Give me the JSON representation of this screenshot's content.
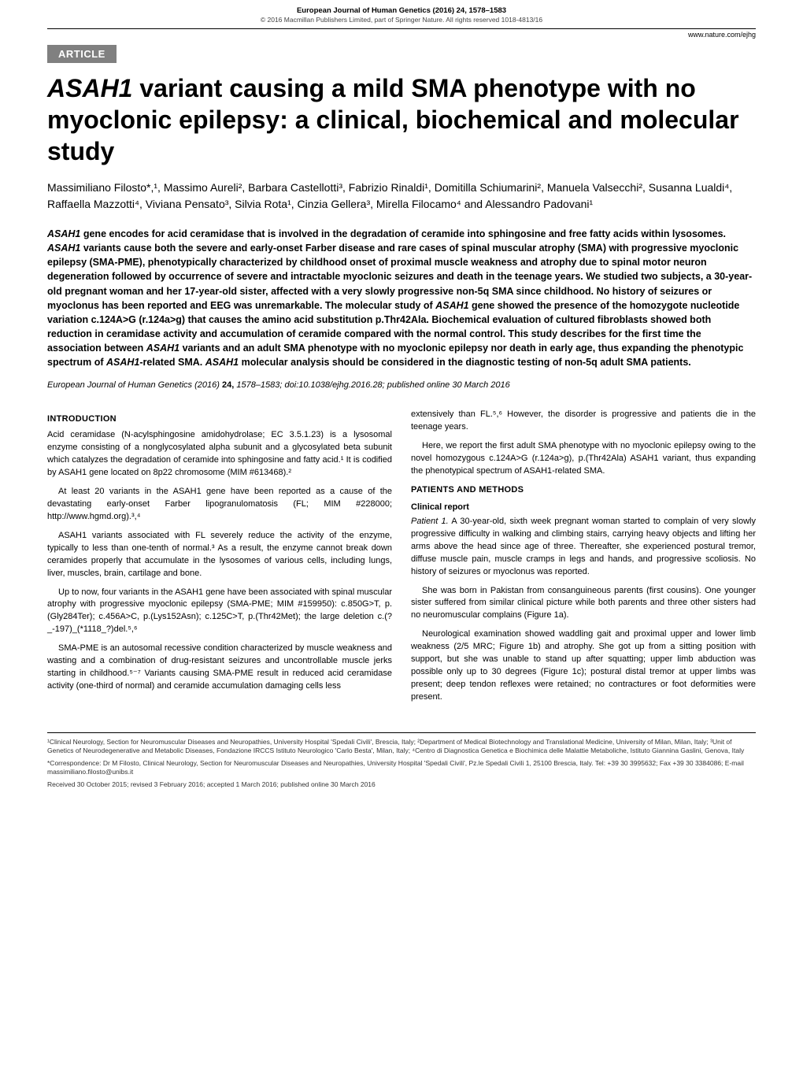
{
  "header": {
    "journal": "European Journal of Human Genetics (2016) 24, 1578–1583",
    "copyright": "© 2016 Macmillan Publishers Limited, part of Springer Nature. All rights reserved 1018-4813/16",
    "website": "www.nature.com/ejhg",
    "badge": "ARTICLE"
  },
  "title": {
    "gene": "ASAH1",
    "rest": " variant causing a mild SMA phenotype with no myoclonic epilepsy: a clinical, biochemical and molecular study"
  },
  "authors_html": "Massimiliano Filosto*,¹, Massimo Aureli², Barbara Castellotti³, Fabrizio Rinaldi¹, Domitilla Schiumarini², Manuela Valsecchi², Susanna Lualdi⁴, Raffaella Mazzotti⁴, Viviana Pensato³, Silvia Rota¹, Cinzia Gellera³, Mirella Filocamo⁴ and Alessandro Padovani¹",
  "abstract": {
    "p1_a": "ASAH1",
    "p1_b": " gene encodes for acid ceramidase that is involved in the degradation of ceramide into sphingosine and free fatty acids within lysosomes. ",
    "p1_c": "ASAH1",
    "p1_d": " variants cause both the severe and early-onset Farber disease and rare cases of spinal muscular atrophy (SMA) with progressive myoclonic epilepsy (SMA-PME), phenotypically characterized by childhood onset of proximal muscle weakness and atrophy due to spinal motor neuron degeneration followed by occurrence of severe and intractable myoclonic seizures and death in the teenage years. We studied two subjects, a 30-year-old pregnant woman and her 17-year-old sister, affected with a very slowly progressive non-5q SMA since childhood. No history of seizures or myoclonus has been reported and EEG was unremarkable. The molecular study of ",
    "p1_e": "ASAH1",
    "p1_f": " gene showed the presence of the homozygote nucleotide variation c.124A>G (r.124a>g) that causes the amino acid substitution p.Thr42Ala. Biochemical evaluation of cultured fibroblasts showed both reduction in ceramidase activity and accumulation of ceramide compared with the normal control. This study describes for the first time the association between ",
    "p1_g": "ASAH1",
    "p1_h": " variants and an adult SMA phenotype with no myoclonic epilepsy nor death in early age, thus expanding the phenotypic spectrum of ",
    "p1_i": "ASAH1",
    "p1_j": "-related SMA. ",
    "p1_k": "ASAH1",
    "p1_l": " molecular analysis should be considered in the diagnostic testing of non-5q adult SMA patients."
  },
  "citation": {
    "journal": "European Journal of Human Genetics",
    "rest": " (2016) ",
    "vol": "24,",
    "pages": " 1578–1583; doi:10.1038/ejhg.2016.28; published online 30 March 2016"
  },
  "left": {
    "h_intro": "INTRODUCTION",
    "p1": "Acid ceramidase (N-acylsphingosine amidohydrolase; EC 3.5.1.23) is a lysosomal enzyme consisting of a nonglycosylated alpha subunit and a glycosylated beta subunit which catalyzes the degradation of ceramide into sphingosine and fatty acid.¹ It is codified by ASAH1 gene located on 8p22 chromosome (MIM #613468).²",
    "p2": "At least 20 variants in the ASAH1 gene have been reported as a cause of the devastating early-onset Farber lipogranulomatosis (FL; MIM #228000; http://www.hgmd.org).³,⁴",
    "p3": "ASAH1 variants associated with FL severely reduce the activity of the enzyme, typically to less than one-tenth of normal.³ As a result, the enzyme cannot break down ceramides properly that accumulate in the lysosomes of various cells, including lungs, liver, muscles, brain, cartilage and bone.",
    "p4": "Up to now, four variants in the ASAH1 gene have been associated with spinal muscular atrophy with progressive myoclonic epilepsy (SMA-PME; MIM #159950): c.850G>T, p.(Gly284Ter); c.456A>C, p.(Lys152Asn); c.125C>T, p.(Thr42Met); the large deletion c.(?_-197)_(*1118_?)del.⁵,⁶",
    "p5": "SMA-PME is an autosomal recessive condition characterized by muscle weakness and wasting and a combination of drug-resistant seizures and uncontrollable muscle jerks starting in childhood.⁵⁻⁷ Variants causing SMA-PME result in reduced acid ceramidase activity (one-third of normal) and ceramide accumulation damaging cells less"
  },
  "right": {
    "p1": "extensively than FL.⁵,⁶ However, the disorder is progressive and patients die in the teenage years.",
    "p2": "Here, we report the first adult SMA phenotype with no myoclonic epilepsy owing to the novel homozygous c.124A>G (r.124a>g), p.(Thr42Ala) ASAH1 variant, thus expanding the phenotypical spectrum of ASAH1-related SMA.",
    "h_patients": "PATIENTS AND METHODS",
    "h_clinical": "Clinical report",
    "p3_runin": "Patient 1.",
    "p3": "  A 30-year-old, sixth week pregnant woman started to complain of very slowly progressive difficulty in walking and climbing stairs, carrying heavy objects and lifting her arms above the head since age of three. Thereafter, she experienced postural tremor, diffuse muscle pain, muscle cramps in legs and hands, and progressive scoliosis. No history of seizures or myoclonus was reported.",
    "p4": "She was born in Pakistan from consanguineous parents (first cousins). One younger sister suffered from similar clinical picture while both parents and three other sisters had no neuromuscular complains (Figure 1a).",
    "p5": "Neurological examination showed waddling gait and proximal upper and lower limb weakness (2/5 MRC; Figure 1b) and atrophy. She got up from a sitting position with support, but she was unable to stand up after squatting; upper limb abduction was possible only up to 30 degrees (Figure 1c); postural distal tremor at upper limbs was present; deep tendon reflexes were retained; no contractures or foot deformities were present."
  },
  "footer": {
    "affiliations": "¹Clinical Neurology, Section for Neuromuscular Diseases and Neuropathies, University Hospital 'Spedali Civili', Brescia, Italy; ²Department of Medical Biotechnology and Translational Medicine, University of Milan, Milan, Italy; ³Unit of Genetics of Neurodegenerative and Metabolic Diseases, Fondazione IRCCS Istituto Neurologico 'Carlo Besta', Milan, Italy; ⁴Centro di Diagnostica Genetica e Biochimica delle Malattie Metaboliche, Istituto Giannina Gaslini, Genova, Italy",
    "correspondence": "*Correspondence: Dr M Filosto, Clinical Neurology, Section for Neuromuscular Diseases and Neuropathies, University Hospital 'Spedali Civili', Pz.le Spedali Civili 1, 25100 Brescia, Italy. Tel: +39 30 3995632; Fax +39 30 3384086; E-mail massimiliano.filosto@unibs.it",
    "received": "Received 30 October 2015; revised 3 February 2016; accepted 1 March 2016; published online 30 March 2016"
  },
  "colors": {
    "badge_bg": "#808080",
    "badge_text": "#ffffff",
    "text": "#000000",
    "footer_text": "#333333"
  }
}
